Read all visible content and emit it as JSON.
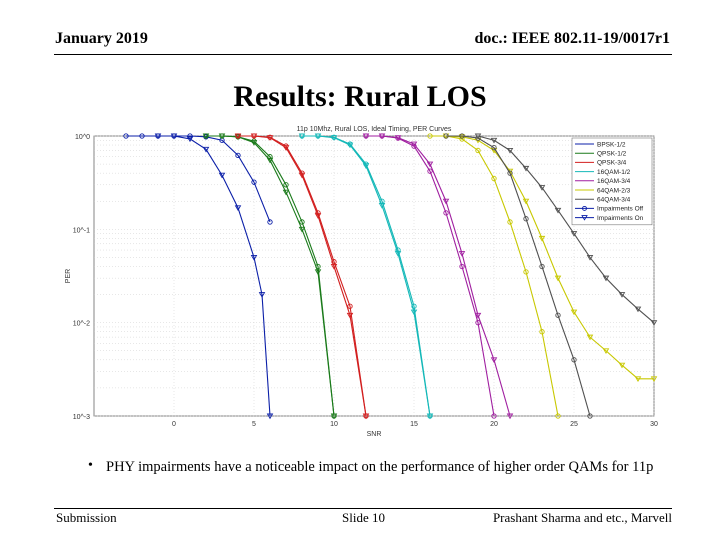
{
  "header": {
    "date": "January 2019",
    "doc": "doc.: IEEE 802.11-19/0017r1"
  },
  "slide": {
    "title": "Results: Rural LOS",
    "bullet_marker": "•",
    "bullet": "PHY impairments have a noticeable impact on the performance of higher order QAMs for 11p"
  },
  "footer": {
    "left": "Submission",
    "center": "Slide 10",
    "right": "Prashant Sharma and etc., Marvell"
  },
  "chart_data": {
    "type": "line",
    "title": "11p 10Mhz, Rural LOS, Ideal Timing, PER Curves",
    "xlabel": "SNR",
    "ylabel": "PER",
    "xlim": [
      -5,
      30
    ],
    "ylim_log": [
      0.001,
      1
    ],
    "x_ticks": [
      "0",
      "5",
      "10",
      "15",
      "20",
      "25",
      "30"
    ],
    "y_ticks": [
      "10^0",
      "10^-1",
      "10^-2",
      "10^-3"
    ],
    "legend": [
      "BPSK-1/2",
      "QPSK-1/2",
      "QPSK-3/4",
      "16QAM-1/2",
      "16QAM-3/4",
      "64QAM-2/3",
      "64QAM-3/4",
      "Impairments Off",
      "Impairments On"
    ],
    "series": [
      {
        "name": "BPSK-1/2",
        "color": "#0b1fa8",
        "impairments": "off",
        "x": [
          -3,
          -2,
          -1,
          0,
          1,
          2,
          3,
          4,
          5,
          6
        ],
        "y": [
          1,
          1,
          1,
          1,
          1,
          0.98,
          0.9,
          0.62,
          0.32,
          0.12
        ]
      },
      {
        "name": "BPSK-1/2",
        "color": "#0b1fa8",
        "impairments": "on",
        "x": [
          -1,
          0,
          1,
          2,
          3,
          4,
          5,
          5.5,
          6
        ],
        "y": [
          1,
          1,
          0.93,
          0.72,
          0.38,
          0.17,
          0.05,
          0.02,
          0.001
        ]
      },
      {
        "name": "QPSK-1/2",
        "color": "#1a7a1a",
        "impairments": "off",
        "x": [
          2,
          3,
          4,
          5,
          6,
          7,
          8,
          9,
          10
        ],
        "y": [
          1,
          1,
          0.98,
          0.88,
          0.6,
          0.3,
          0.12,
          0.04,
          0.001
        ]
      },
      {
        "name": "QPSK-1/2",
        "color": "#1a7a1a",
        "impairments": "on",
        "x": [
          2,
          3,
          4,
          5,
          6,
          7,
          8,
          9,
          10
        ],
        "y": [
          1,
          1,
          0.98,
          0.85,
          0.55,
          0.25,
          0.1,
          0.035,
          0.001
        ]
      },
      {
        "name": "QPSK-3/4",
        "color": "#d21f1f",
        "impairments": "off",
        "x": [
          4,
          5,
          6,
          7,
          8,
          9,
          10,
          11,
          12
        ],
        "y": [
          1,
          1,
          0.97,
          0.78,
          0.4,
          0.15,
          0.045,
          0.015,
          0.001
        ]
      },
      {
        "name": "QPSK-3/4",
        "color": "#d21f1f",
        "impairments": "on",
        "x": [
          4,
          5,
          6,
          7,
          8,
          9,
          10,
          11,
          12
        ],
        "y": [
          1,
          1,
          0.96,
          0.75,
          0.38,
          0.14,
          0.04,
          0.012,
          0.001
        ]
      },
      {
        "name": "16QAM-1/2",
        "color": "#14b8b8",
        "impairments": "off",
        "x": [
          8,
          9,
          10,
          11,
          12,
          13,
          14,
          15,
          16
        ],
        "y": [
          1,
          1,
          0.97,
          0.82,
          0.5,
          0.2,
          0.06,
          0.015,
          0.001
        ]
      },
      {
        "name": "16QAM-1/2",
        "color": "#14b8b8",
        "impairments": "on",
        "x": [
          8,
          9,
          10,
          11,
          12,
          13,
          14,
          15,
          16
        ],
        "y": [
          1,
          1,
          0.96,
          0.8,
          0.48,
          0.18,
          0.055,
          0.013,
          0.001
        ]
      },
      {
        "name": "16QAM-3/4",
        "color": "#a01fa0",
        "impairments": "off",
        "x": [
          12,
          13,
          14,
          15,
          16,
          17,
          18,
          19,
          20
        ],
        "y": [
          1,
          1,
          0.95,
          0.78,
          0.42,
          0.15,
          0.04,
          0.01,
          0.001
        ]
      },
      {
        "name": "16QAM-3/4",
        "color": "#a01fa0",
        "impairments": "on",
        "x": [
          12,
          13,
          14,
          15,
          16,
          17,
          18,
          19,
          20,
          21
        ],
        "y": [
          1,
          1,
          0.96,
          0.82,
          0.5,
          0.2,
          0.055,
          0.012,
          0.004,
          0.001
        ]
      },
      {
        "name": "64QAM-2/3",
        "color": "#c8c800",
        "impairments": "off",
        "x": [
          16,
          17,
          18,
          19,
          20,
          21,
          22,
          23,
          24
        ],
        "y": [
          1,
          1,
          0.93,
          0.7,
          0.35,
          0.12,
          0.035,
          0.008,
          0.001
        ]
      },
      {
        "name": "64QAM-2/3",
        "color": "#c8c800",
        "impairments": "on",
        "x": [
          17,
          18,
          19,
          20,
          21,
          22,
          23,
          24,
          25,
          26,
          27,
          28,
          29,
          30
        ],
        "y": [
          1,
          0.98,
          0.9,
          0.7,
          0.42,
          0.2,
          0.08,
          0.03,
          0.013,
          0.007,
          0.005,
          0.0035,
          0.0025,
          0.0025
        ]
      },
      {
        "name": "64QAM-3/4",
        "color": "#505050",
        "impairments": "off",
        "x": [
          17,
          18,
          19,
          20,
          21,
          22,
          23,
          24,
          25,
          26
        ],
        "y": [
          1,
          1,
          0.95,
          0.75,
          0.4,
          0.13,
          0.04,
          0.012,
          0.004,
          0.001
        ]
      },
      {
        "name": "64QAM-3/4",
        "color": "#505050",
        "impairments": "on",
        "x": [
          19,
          20,
          21,
          22,
          23,
          24,
          25,
          26,
          27,
          28,
          29,
          30
        ],
        "y": [
          1,
          0.9,
          0.7,
          0.45,
          0.28,
          0.16,
          0.09,
          0.05,
          0.03,
          0.02,
          0.014,
          0.01
        ]
      }
    ]
  }
}
